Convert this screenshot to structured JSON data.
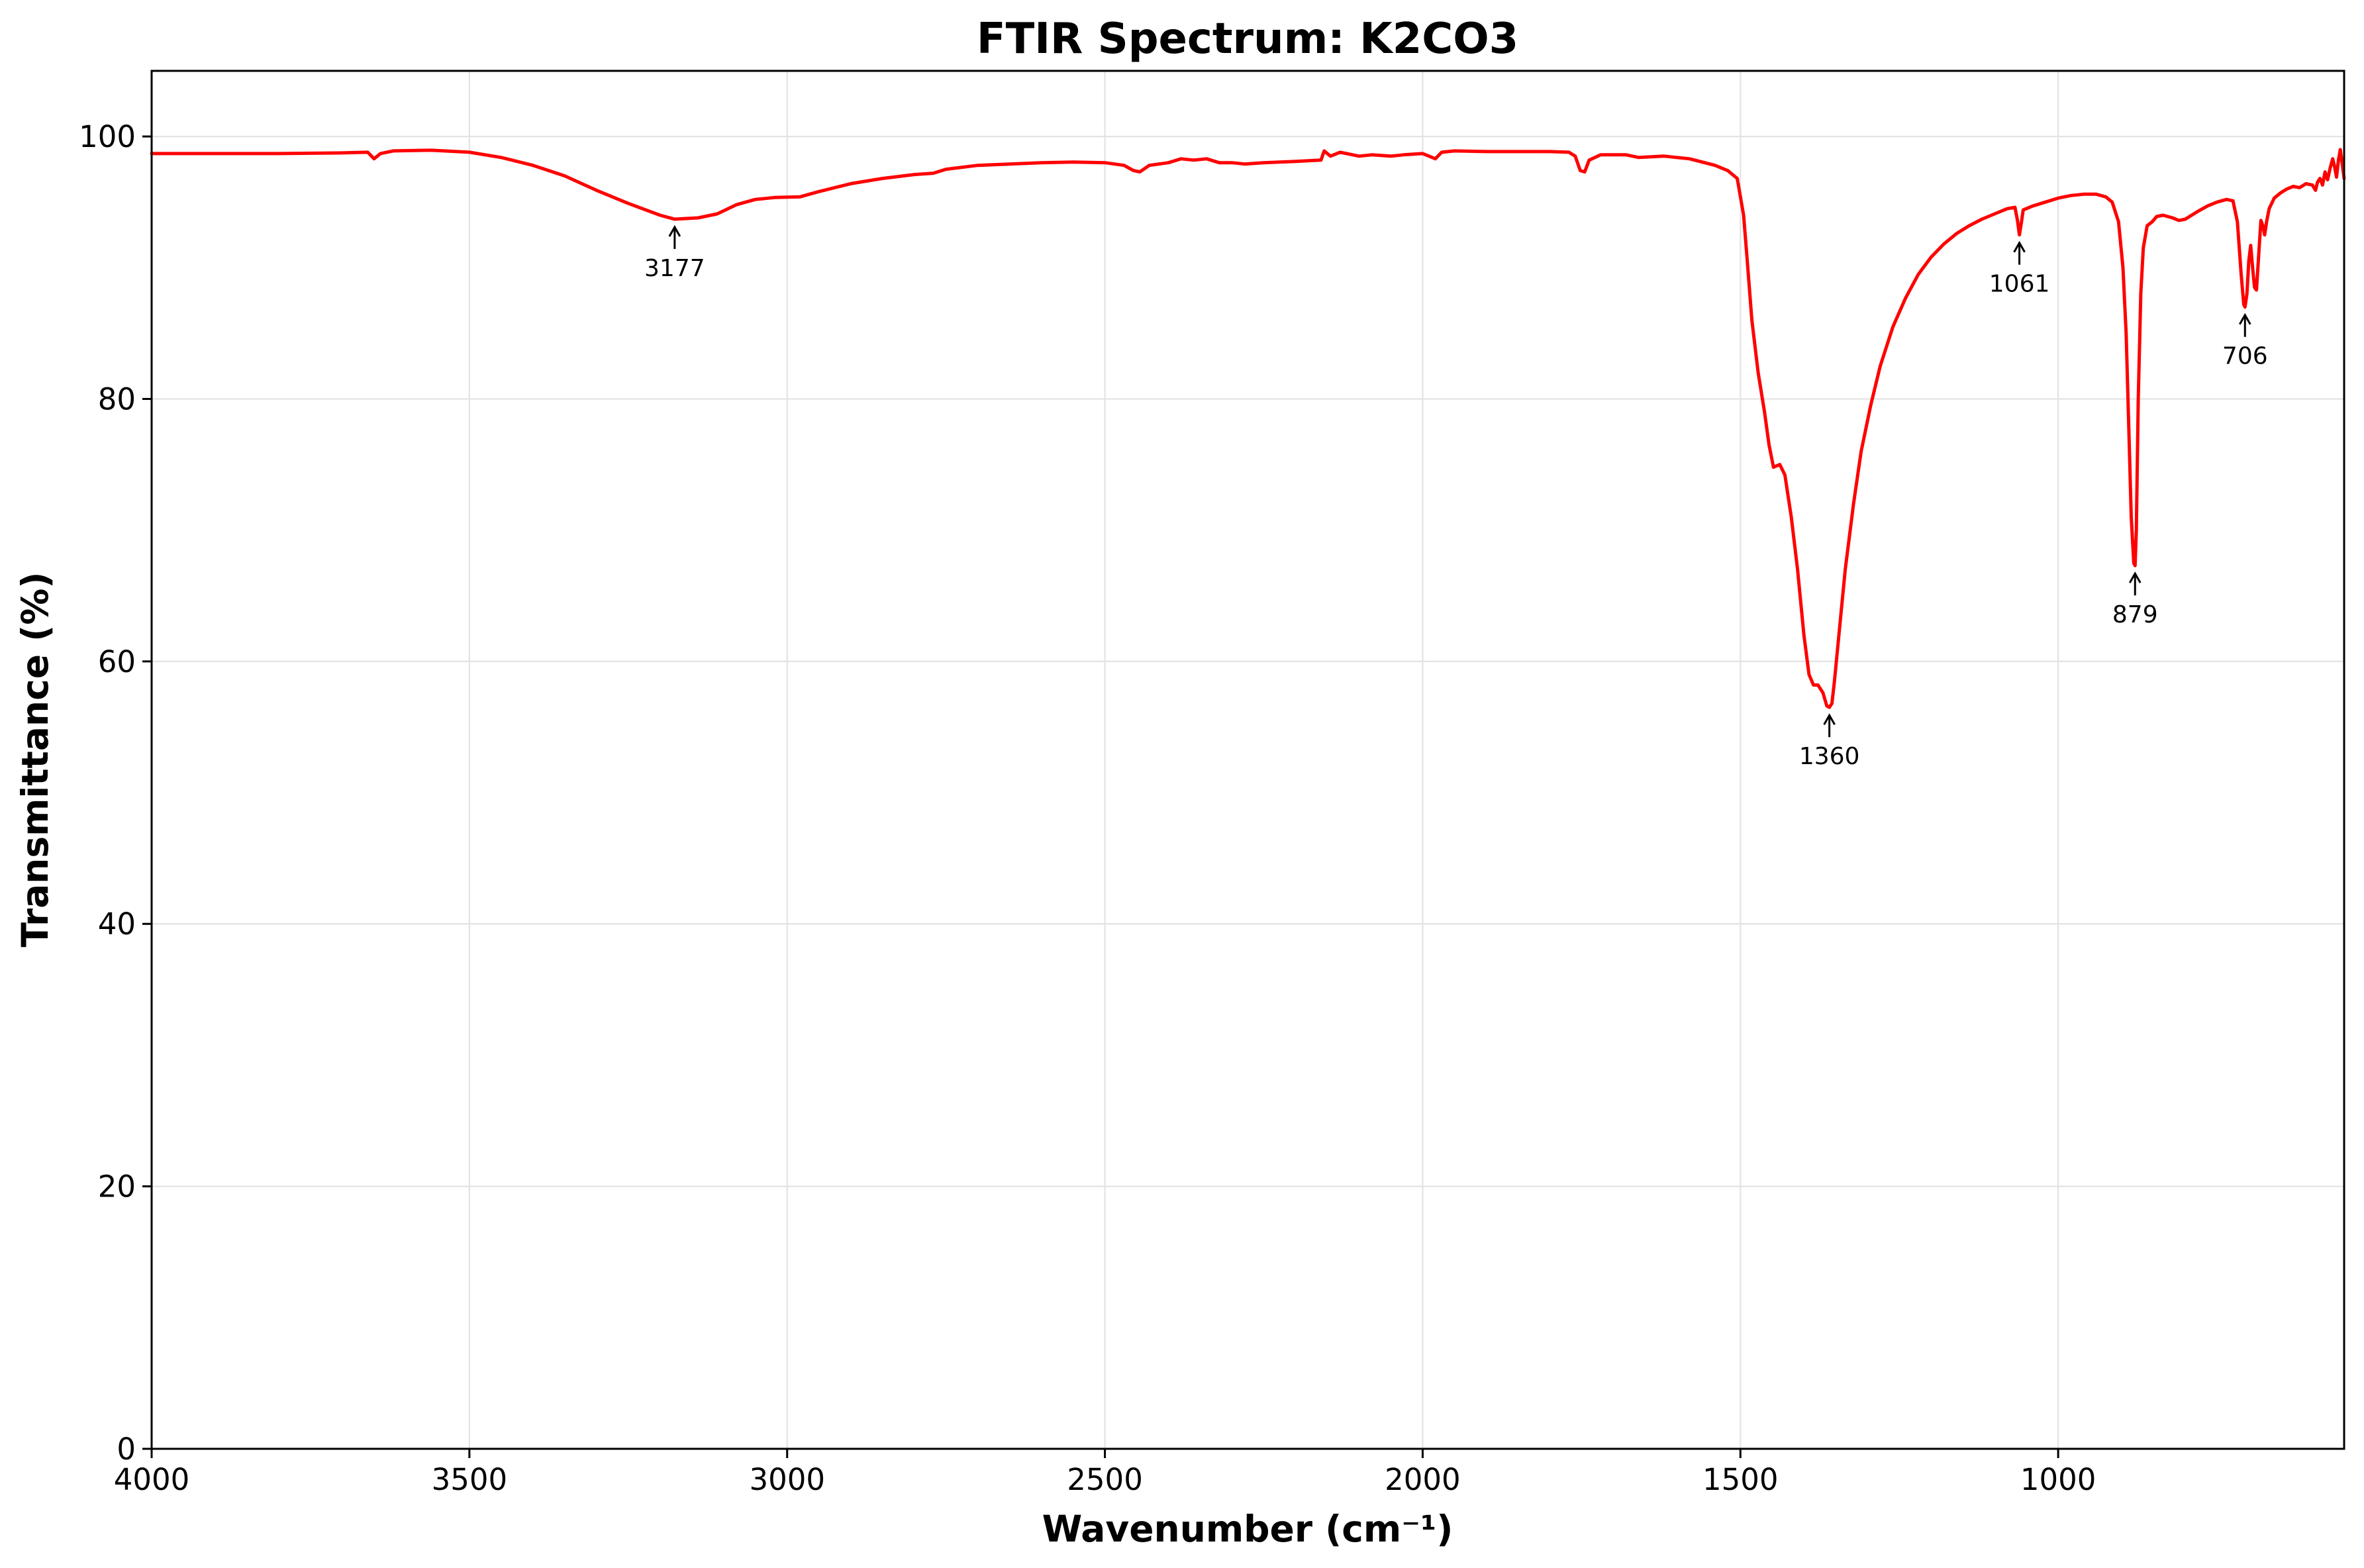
{
  "chart_data": {
    "type": "line",
    "title": "FTIR Spectrum: K2CO3",
    "xlabel": "Wavenumber (cm⁻¹)",
    "ylabel": "Transmittance (%)",
    "xlim": [
      4000,
      550
    ],
    "ylim": [
      0,
      105
    ],
    "x_reversed": true,
    "grid": true,
    "line_color": "#ff0000",
    "x_ticks": [
      4000,
      3500,
      3000,
      2500,
      2000,
      1500,
      1000
    ],
    "x_tick_labels": [
      "4000",
      "3500",
      "3000",
      "2500",
      "2000",
      "1500",
      "1000"
    ],
    "y_ticks": [
      0,
      20,
      40,
      60,
      80,
      100
    ],
    "y_tick_labels": [
      "0",
      "20",
      "40",
      "60",
      "80",
      "100"
    ],
    "series": [
      {
        "points": [
          [
            4000,
            98.7
          ],
          [
            3900,
            98.7
          ],
          [
            3800,
            98.7
          ],
          [
            3700,
            98.75
          ],
          [
            3660,
            98.8
          ],
          [
            3650,
            98.3
          ],
          [
            3640,
            98.7
          ],
          [
            3620,
            98.9
          ],
          [
            3560,
            98.95
          ],
          [
            3500,
            98.8
          ],
          [
            3450,
            98.4
          ],
          [
            3400,
            97.8
          ],
          [
            3350,
            97.0
          ],
          [
            3300,
            95.9
          ],
          [
            3250,
            94.9
          ],
          [
            3200,
            94.0
          ],
          [
            3177,
            93.7
          ],
          [
            3140,
            93.8
          ],
          [
            3110,
            94.1
          ],
          [
            3080,
            94.8
          ],
          [
            3050,
            95.2
          ],
          [
            3020,
            95.35
          ],
          [
            2980,
            95.4
          ],
          [
            2950,
            95.8
          ],
          [
            2900,
            96.4
          ],
          [
            2850,
            96.8
          ],
          [
            2800,
            97.1
          ],
          [
            2770,
            97.2
          ],
          [
            2750,
            97.5
          ],
          [
            2700,
            97.8
          ],
          [
            2650,
            97.9
          ],
          [
            2600,
            98.0
          ],
          [
            2550,
            98.05
          ],
          [
            2500,
            98.0
          ],
          [
            2470,
            97.8
          ],
          [
            2455,
            97.4
          ],
          [
            2445,
            97.3
          ],
          [
            2430,
            97.8
          ],
          [
            2400,
            98.0
          ],
          [
            2380,
            98.3
          ],
          [
            2360,
            98.2
          ],
          [
            2340,
            98.3
          ],
          [
            2320,
            98.0
          ],
          [
            2300,
            98.0
          ],
          [
            2280,
            97.9
          ],
          [
            2250,
            98.0
          ],
          [
            2200,
            98.1
          ],
          [
            2160,
            98.2
          ],
          [
            2155,
            98.9
          ],
          [
            2145,
            98.5
          ],
          [
            2130,
            98.8
          ],
          [
            2100,
            98.5
          ],
          [
            2080,
            98.6
          ],
          [
            2050,
            98.5
          ],
          [
            2030,
            98.6
          ],
          [
            2000,
            98.7
          ],
          [
            1990,
            98.5
          ],
          [
            1980,
            98.3
          ],
          [
            1970,
            98.8
          ],
          [
            1950,
            98.9
          ],
          [
            1900,
            98.85
          ],
          [
            1850,
            98.85
          ],
          [
            1800,
            98.85
          ],
          [
            1770,
            98.8
          ],
          [
            1760,
            98.5
          ],
          [
            1752,
            97.4
          ],
          [
            1745,
            97.3
          ],
          [
            1738,
            98.2
          ],
          [
            1720,
            98.6
          ],
          [
            1680,
            98.6
          ],
          [
            1660,
            98.4
          ],
          [
            1620,
            98.5
          ],
          [
            1580,
            98.3
          ],
          [
            1540,
            97.8
          ],
          [
            1520,
            97.4
          ],
          [
            1505,
            96.8
          ],
          [
            1495,
            94.0
          ],
          [
            1490,
            91.0
          ],
          [
            1482,
            86.0
          ],
          [
            1472,
            82.0
          ],
          [
            1462,
            79.0
          ],
          [
            1455,
            76.5
          ],
          [
            1448,
            74.8
          ],
          [
            1438,
            75.0
          ],
          [
            1430,
            74.2
          ],
          [
            1420,
            71.0
          ],
          [
            1410,
            67.0
          ],
          [
            1400,
            62.0
          ],
          [
            1392,
            59.0
          ],
          [
            1385,
            58.2
          ],
          [
            1378,
            58.2
          ],
          [
            1370,
            57.6
          ],
          [
            1364,
            56.6
          ],
          [
            1360,
            56.5
          ],
          [
            1356,
            56.8
          ],
          [
            1352,
            58.5
          ],
          [
            1345,
            62.0
          ],
          [
            1335,
            67.0
          ],
          [
            1322,
            72.0
          ],
          [
            1310,
            76.0
          ],
          [
            1295,
            79.5
          ],
          [
            1280,
            82.5
          ],
          [
            1260,
            85.5
          ],
          [
            1240,
            87.7
          ],
          [
            1220,
            89.5
          ],
          [
            1200,
            90.8
          ],
          [
            1180,
            91.8
          ],
          [
            1160,
            92.6
          ],
          [
            1140,
            93.2
          ],
          [
            1120,
            93.7
          ],
          [
            1100,
            94.1
          ],
          [
            1080,
            94.5
          ],
          [
            1068,
            94.6
          ],
          [
            1064,
            93.6
          ],
          [
            1061,
            92.5
          ],
          [
            1058,
            93.4
          ],
          [
            1055,
            94.4
          ],
          [
            1040,
            94.7
          ],
          [
            1020,
            95.0
          ],
          [
            1000,
            95.3
          ],
          [
            980,
            95.5
          ],
          [
            960,
            95.6
          ],
          [
            940,
            95.6
          ],
          [
            925,
            95.4
          ],
          [
            915,
            95.0
          ],
          [
            905,
            93.5
          ],
          [
            898,
            90.0
          ],
          [
            893,
            85.0
          ],
          [
            889,
            78.0
          ],
          [
            885,
            71.0
          ],
          [
            881,
            67.5
          ],
          [
            879,
            67.3
          ],
          [
            877,
            70.0
          ],
          [
            874,
            80.0
          ],
          [
            870,
            88.0
          ],
          [
            866,
            91.5
          ],
          [
            860,
            93.2
          ],
          [
            852,
            93.5
          ],
          [
            845,
            93.9
          ],
          [
            835,
            94.0
          ],
          [
            820,
            93.8
          ],
          [
            810,
            93.6
          ],
          [
            800,
            93.7
          ],
          [
            790,
            94.0
          ],
          [
            780,
            94.3
          ],
          [
            765,
            94.7
          ],
          [
            750,
            95.0
          ],
          [
            735,
            95.2
          ],
          [
            725,
            95.1
          ],
          [
            718,
            93.5
          ],
          [
            712,
            89.5
          ],
          [
            708,
            87.2
          ],
          [
            706,
            87.0
          ],
          [
            703,
            88.0
          ],
          [
            700,
            90.5
          ],
          [
            697,
            91.7
          ],
          [
            694,
            90.0
          ],
          [
            691,
            88.5
          ],
          [
            688,
            88.3
          ],
          [
            685,
            90.5
          ],
          [
            681,
            93.6
          ],
          [
            678,
            93.2
          ],
          [
            675,
            92.5
          ],
          [
            672,
            93.5
          ],
          [
            668,
            94.5
          ],
          [
            660,
            95.3
          ],
          [
            650,
            95.7
          ],
          [
            640,
            96.0
          ],
          [
            630,
            96.2
          ],
          [
            620,
            96.1
          ],
          [
            610,
            96.4
          ],
          [
            600,
            96.3
          ],
          [
            595,
            95.9
          ],
          [
            592,
            96.5
          ],
          [
            588,
            96.8
          ],
          [
            584,
            96.3
          ],
          [
            580,
            97.3
          ],
          [
            576,
            96.7
          ],
          [
            572,
            97.6
          ],
          [
            568,
            98.3
          ],
          [
            565,
            97.7
          ],
          [
            562,
            96.9
          ],
          [
            559,
            98.2
          ],
          [
            556,
            99.0
          ],
          [
            553,
            97.9
          ],
          [
            550,
            96.8
          ]
        ]
      }
    ],
    "annotations": [
      {
        "label": "3177",
        "x": 3177,
        "y": 93.7
      },
      {
        "label": "1360",
        "x": 1360,
        "y": 56.5
      },
      {
        "label": "1061",
        "x": 1061,
        "y": 92.5
      },
      {
        "label": "879",
        "x": 879,
        "y": 67.3
      },
      {
        "label": "706",
        "x": 706,
        "y": 87.0
      }
    ]
  }
}
